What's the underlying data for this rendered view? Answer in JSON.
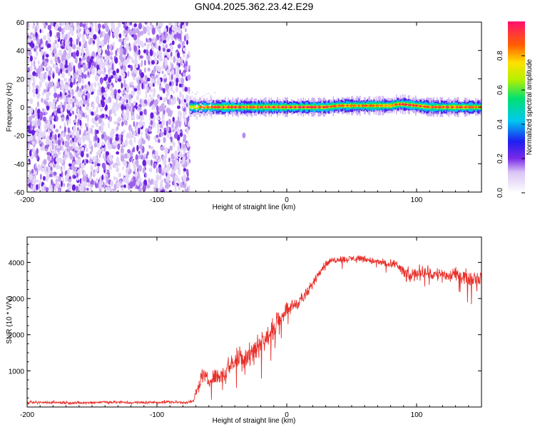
{
  "title": "GN04.2025.362.23.42.E29",
  "chart_data": [
    {
      "type": "heatmap",
      "title": "GN04.2025.362.23.42.E29",
      "xlabel": "Height of straight line (km)",
      "ylabel": "Frequency (Hz)",
      "xlim": [
        -200,
        150
      ],
      "ylim": [
        -60,
        60
      ],
      "xticks": [
        -200,
        -100,
        0,
        100
      ],
      "yticks": [
        -60,
        -40,
        -20,
        0,
        20,
        40,
        60
      ],
      "xtick_labels": [
        "-200",
        "-100",
        "0",
        "100"
      ],
      "ytick_labels": [
        "-60",
        "-40",
        "-20",
        "0",
        "20",
        "40",
        "60"
      ],
      "noise_region_km": [
        -200,
        -75
      ],
      "signal_band": {
        "x_km": [
          -75,
          -65,
          -50,
          -40,
          -30,
          -20,
          -10,
          0,
          10,
          20,
          30,
          40,
          50,
          60,
          70,
          80,
          85,
          90,
          100,
          110,
          120,
          130,
          140,
          150
        ],
        "center_hz": [
          0,
          0,
          0,
          0,
          0,
          0,
          0,
          0,
          0,
          0,
          0,
          1,
          1,
          1,
          1,
          1,
          2,
          2,
          1,
          0,
          0,
          0,
          0,
          0
        ],
        "peak_amplitude": [
          0.6,
          0.9,
          0.95,
          0.95,
          0.9,
          0.92,
          0.95,
          0.97,
          0.97,
          0.96,
          0.95,
          0.9,
          0.85,
          0.9,
          0.85,
          0.8,
          0.9,
          0.95,
          0.95,
          0.9,
          0.92,
          0.95,
          0.9,
          0.85
        ]
      },
      "isolated_blob": {
        "x_km": -33,
        "y_hz": -20
      },
      "colorbar": {
        "label": "Normalized spectral amplitude",
        "range": [
          0.0,
          1.0
        ],
        "ticks": [
          0.0,
          0.2,
          0.4,
          0.6,
          0.8
        ],
        "tick_labels": [
          "0.0",
          "0.2",
          "0.4",
          "0.6",
          "0.8"
        ]
      }
    },
    {
      "type": "line",
      "xlabel": "Height of straight line (km)",
      "ylabel": "SNR (10 * V/V)",
      "xlim": [
        -200,
        150
      ],
      "ylim": [
        0,
        4700
      ],
      "xticks": [
        -200,
        -100,
        0,
        100
      ],
      "yticks": [
        1000,
        2000,
        3000,
        4000
      ],
      "xtick_labels": [
        "-200",
        "-100",
        "0",
        "100"
      ],
      "ytick_labels": [
        "1000",
        "2000",
        "3000",
        "4000"
      ],
      "series": [
        {
          "name": "SNR",
          "color": "#e8302a",
          "x": [
            -200,
            -180,
            -160,
            -140,
            -120,
            -100,
            -90,
            -80,
            -72,
            -68,
            -65,
            -60,
            -55,
            -50,
            -45,
            -40,
            -35,
            -30,
            -25,
            -20,
            -15,
            -10,
            -5,
            0,
            5,
            10,
            15,
            20,
            25,
            30,
            35,
            40,
            45,
            50,
            55,
            60,
            65,
            70,
            75,
            80,
            85,
            90,
            95,
            100,
            105,
            110,
            115,
            120,
            125,
            130,
            135,
            140,
            145,
            150
          ],
          "values": [
            120,
            130,
            110,
            140,
            120,
            130,
            140,
            125,
            150,
            600,
            900,
            700,
            850,
            900,
            1100,
            1300,
            1350,
            1450,
            1600,
            1800,
            1900,
            2200,
            2500,
            2700,
            2800,
            2950,
            3100,
            3400,
            3750,
            3950,
            4050,
            4100,
            4080,
            4100,
            4120,
            4100,
            4050,
            4000,
            4000,
            3900,
            3950,
            3700,
            3600,
            3700,
            3750,
            3700,
            3650,
            3700,
            3600,
            3650,
            3650,
            3550,
            3600,
            3550
          ],
          "noise_amplitude": [
            60,
            60,
            60,
            60,
            60,
            60,
            60,
            60,
            60,
            250,
            300,
            300,
            350,
            350,
            400,
            450,
            600,
            700,
            600,
            450,
            400,
            400,
            350,
            300,
            300,
            280,
            250,
            200,
            180,
            150,
            150,
            140,
            140,
            150,
            150,
            150,
            150,
            150,
            160,
            200,
            200,
            300,
            300,
            300,
            300,
            320,
            300,
            300,
            300,
            300,
            300,
            300,
            300,
            300
          ]
        }
      ]
    }
  ]
}
